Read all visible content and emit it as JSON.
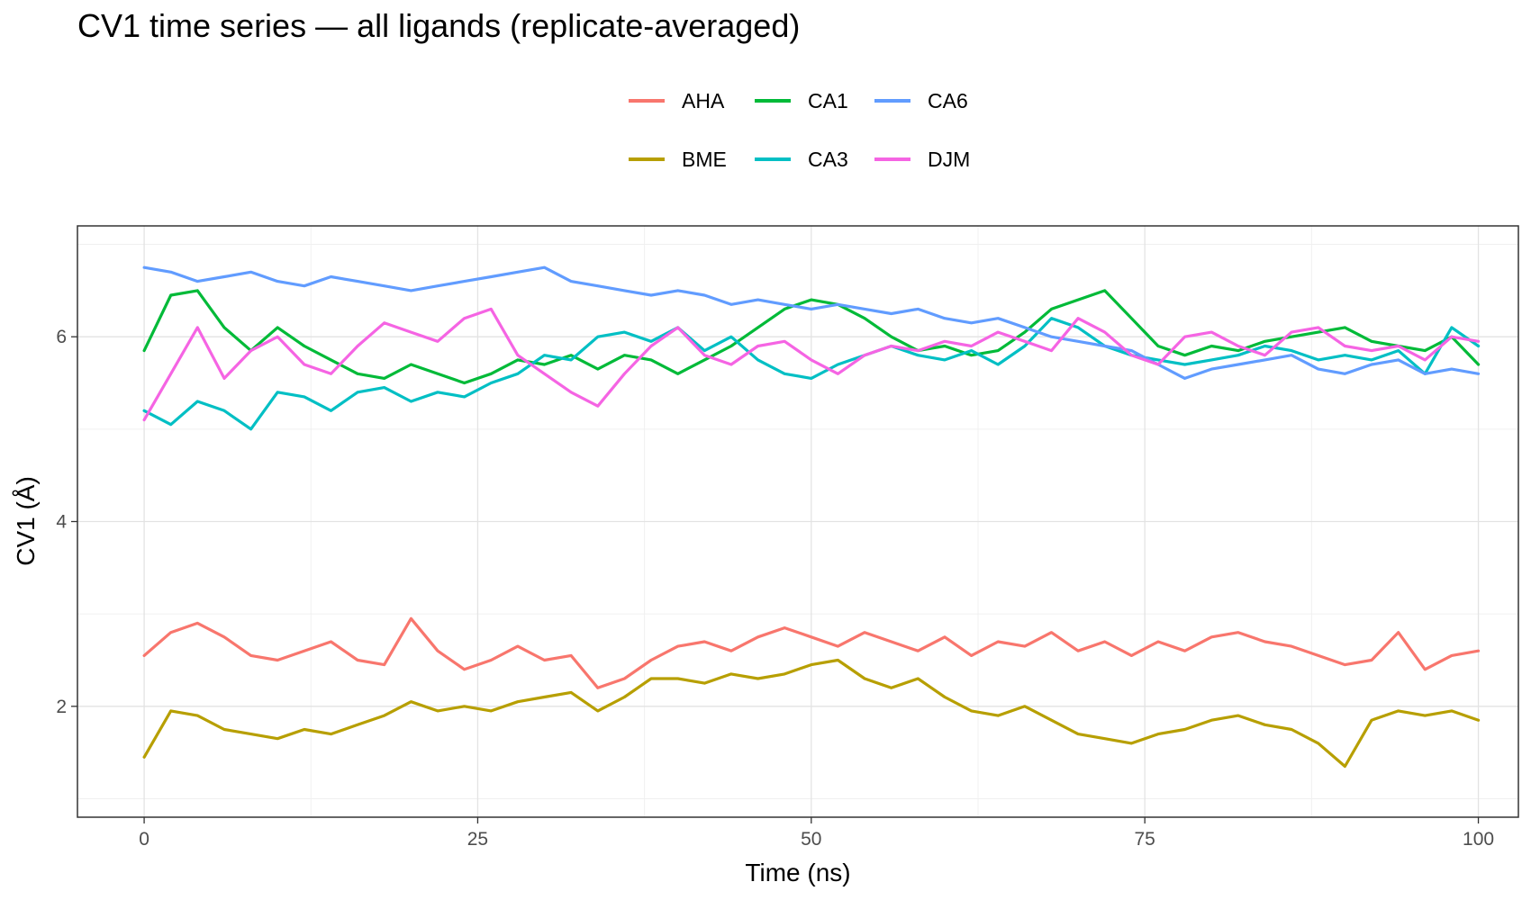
{
  "chart_data": {
    "type": "line",
    "title": "CV1 time series — all ligands (replicate-averaged)",
    "xlabel": "Time (ns)",
    "ylabel": "CV1 (Å)",
    "xlim": [
      -5,
      103
    ],
    "ylim": [
      0.8,
      7.2
    ],
    "xticks": [
      0,
      25,
      50,
      75,
      100
    ],
    "yticks": [
      2,
      4,
      6
    ],
    "xtick_labels": [
      "0",
      "25",
      "50",
      "75",
      "100"
    ],
    "ytick_labels": [
      "2",
      "4",
      "6"
    ],
    "grid": true,
    "legend_position": "top",
    "legend_columns": 3,
    "series": [
      {
        "name": "AHA",
        "color": "#F8766D",
        "x": [
          0,
          2,
          4,
          6,
          8,
          10,
          12,
          14,
          16,
          18,
          20,
          22,
          24,
          26,
          28,
          30,
          32,
          34,
          36,
          38,
          40,
          42,
          44,
          46,
          48,
          50,
          52,
          54,
          56,
          58,
          60,
          62,
          64,
          66,
          68,
          70,
          72,
          74,
          76,
          78,
          80,
          82,
          84,
          86,
          88,
          90,
          92,
          94,
          96,
          98,
          100
        ],
        "y": [
          2.55,
          2.8,
          2.9,
          2.75,
          2.55,
          2.5,
          2.6,
          2.7,
          2.5,
          2.45,
          2.95,
          2.6,
          2.4,
          2.5,
          2.65,
          2.5,
          2.55,
          2.2,
          2.3,
          2.5,
          2.65,
          2.7,
          2.6,
          2.75,
          2.85,
          2.75,
          2.65,
          2.8,
          2.7,
          2.6,
          2.75,
          2.55,
          2.7,
          2.65,
          2.8,
          2.6,
          2.7,
          2.55,
          2.7,
          2.6,
          2.75,
          2.8,
          2.7,
          2.65,
          2.55,
          2.45,
          2.5,
          2.8,
          2.4,
          2.55,
          2.6
        ]
      },
      {
        "name": "BME",
        "color": "#B79F00",
        "x": [
          0,
          2,
          4,
          6,
          8,
          10,
          12,
          14,
          16,
          18,
          20,
          22,
          24,
          26,
          28,
          30,
          32,
          34,
          36,
          38,
          40,
          42,
          44,
          46,
          48,
          50,
          52,
          54,
          56,
          58,
          60,
          62,
          64,
          66,
          68,
          70,
          72,
          74,
          76,
          78,
          80,
          82,
          84,
          86,
          88,
          90,
          92,
          94,
          96,
          98,
          100
        ],
        "y": [
          1.45,
          1.95,
          1.9,
          1.75,
          1.7,
          1.65,
          1.75,
          1.7,
          1.8,
          1.9,
          2.05,
          1.95,
          2.0,
          1.95,
          2.05,
          2.1,
          2.15,
          1.95,
          2.1,
          2.3,
          2.3,
          2.25,
          2.35,
          2.3,
          2.35,
          2.45,
          2.5,
          2.3,
          2.2,
          2.3,
          2.1,
          1.95,
          1.9,
          2.0,
          1.85,
          1.7,
          1.65,
          1.6,
          1.7,
          1.75,
          1.85,
          1.9,
          1.8,
          1.75,
          1.6,
          1.35,
          1.85,
          1.95,
          1.9,
          1.95,
          1.85
        ]
      },
      {
        "name": "CA1",
        "color": "#00BA38",
        "x": [
          0,
          2,
          4,
          6,
          8,
          10,
          12,
          14,
          16,
          18,
          20,
          22,
          24,
          26,
          28,
          30,
          32,
          34,
          36,
          38,
          40,
          42,
          44,
          46,
          48,
          50,
          52,
          54,
          56,
          58,
          60,
          62,
          64,
          66,
          68,
          70,
          72,
          74,
          76,
          78,
          80,
          82,
          84,
          86,
          88,
          90,
          92,
          94,
          96,
          98,
          100
        ],
        "y": [
          5.85,
          6.45,
          6.5,
          6.1,
          5.85,
          6.1,
          5.9,
          5.75,
          5.6,
          5.55,
          5.7,
          5.6,
          5.5,
          5.6,
          5.75,
          5.7,
          5.8,
          5.65,
          5.8,
          5.75,
          5.6,
          5.75,
          5.9,
          6.1,
          6.3,
          6.4,
          6.35,
          6.2,
          6.0,
          5.85,
          5.9,
          5.8,
          5.85,
          6.05,
          6.3,
          6.4,
          6.5,
          6.2,
          5.9,
          5.8,
          5.9,
          5.85,
          5.95,
          6.0,
          6.05,
          6.1,
          5.95,
          5.9,
          5.85,
          6.0,
          5.7
        ]
      },
      {
        "name": "CA3",
        "color": "#00BFC4",
        "x": [
          0,
          2,
          4,
          6,
          8,
          10,
          12,
          14,
          16,
          18,
          20,
          22,
          24,
          26,
          28,
          30,
          32,
          34,
          36,
          38,
          40,
          42,
          44,
          46,
          48,
          50,
          52,
          54,
          56,
          58,
          60,
          62,
          64,
          66,
          68,
          70,
          72,
          74,
          76,
          78,
          80,
          82,
          84,
          86,
          88,
          90,
          92,
          94,
          96,
          98,
          100
        ],
        "y": [
          5.2,
          5.05,
          5.3,
          5.2,
          5.0,
          5.4,
          5.35,
          5.2,
          5.4,
          5.45,
          5.3,
          5.4,
          5.35,
          5.5,
          5.6,
          5.8,
          5.75,
          6.0,
          6.05,
          5.95,
          6.1,
          5.85,
          6.0,
          5.75,
          5.6,
          5.55,
          5.7,
          5.8,
          5.9,
          5.8,
          5.75,
          5.85,
          5.7,
          5.9,
          6.2,
          6.1,
          5.9,
          5.8,
          5.75,
          5.7,
          5.75,
          5.8,
          5.9,
          5.85,
          5.75,
          5.8,
          5.75,
          5.85,
          5.6,
          6.1,
          5.9
        ]
      },
      {
        "name": "CA6",
        "color": "#619CFF",
        "x": [
          0,
          2,
          4,
          6,
          8,
          10,
          12,
          14,
          16,
          18,
          20,
          22,
          24,
          26,
          28,
          30,
          32,
          34,
          36,
          38,
          40,
          42,
          44,
          46,
          48,
          50,
          52,
          54,
          56,
          58,
          60,
          62,
          64,
          66,
          68,
          70,
          72,
          74,
          76,
          78,
          80,
          82,
          84,
          86,
          88,
          90,
          92,
          94,
          96,
          98,
          100
        ],
        "y": [
          6.75,
          6.7,
          6.6,
          6.65,
          6.7,
          6.6,
          6.55,
          6.65,
          6.6,
          6.55,
          6.5,
          6.55,
          6.6,
          6.65,
          6.7,
          6.75,
          6.6,
          6.55,
          6.5,
          6.45,
          6.5,
          6.45,
          6.35,
          6.4,
          6.35,
          6.3,
          6.35,
          6.3,
          6.25,
          6.3,
          6.2,
          6.15,
          6.2,
          6.1,
          6.0,
          5.95,
          5.9,
          5.85,
          5.7,
          5.55,
          5.65,
          5.7,
          5.75,
          5.8,
          5.65,
          5.6,
          5.7,
          5.75,
          5.6,
          5.65,
          5.6
        ]
      },
      {
        "name": "DJM",
        "color": "#F564E3",
        "x": [
          0,
          2,
          4,
          6,
          8,
          10,
          12,
          14,
          16,
          18,
          20,
          22,
          24,
          26,
          28,
          30,
          32,
          34,
          36,
          38,
          40,
          42,
          44,
          46,
          48,
          50,
          52,
          54,
          56,
          58,
          60,
          62,
          64,
          66,
          68,
          70,
          72,
          74,
          76,
          78,
          80,
          82,
          84,
          86,
          88,
          90,
          92,
          94,
          96,
          98,
          100
        ],
        "y": [
          5.1,
          5.6,
          6.1,
          5.55,
          5.85,
          6.0,
          5.7,
          5.6,
          5.9,
          6.15,
          6.05,
          5.95,
          6.2,
          6.3,
          5.8,
          5.6,
          5.4,
          5.25,
          5.6,
          5.9,
          6.1,
          5.8,
          5.7,
          5.9,
          5.95,
          5.75,
          5.6,
          5.8,
          5.9,
          5.85,
          5.95,
          5.9,
          6.05,
          5.95,
          5.85,
          6.2,
          6.05,
          5.8,
          5.7,
          6.0,
          6.05,
          5.9,
          5.8,
          6.05,
          6.1,
          5.9,
          5.85,
          5.9,
          5.75,
          6.0,
          5.95
        ]
      }
    ]
  }
}
